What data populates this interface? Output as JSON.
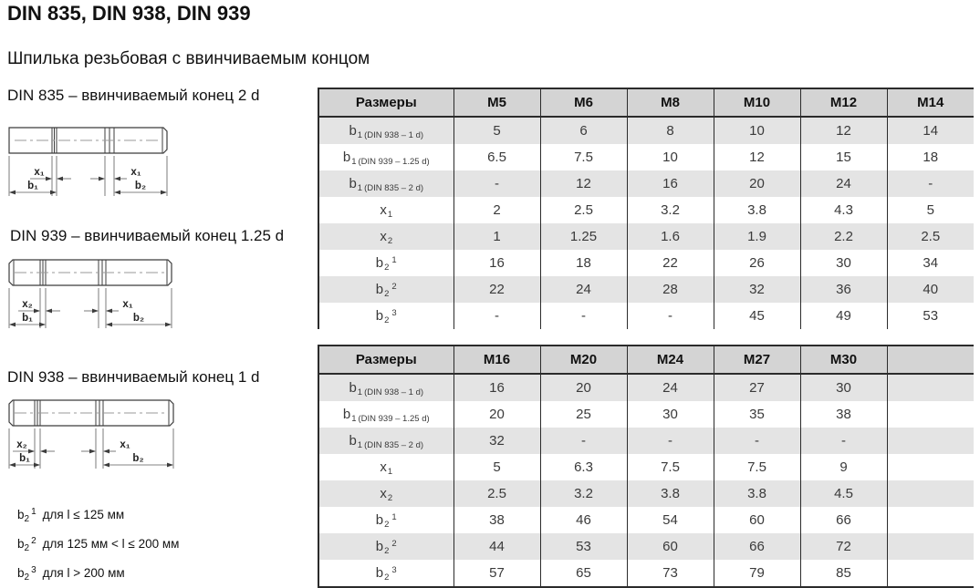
{
  "page": {
    "title": "DIN 835, DIN 938, DIN 939",
    "subtitle": "Шпилька резьбовая с ввинчиваемым концом"
  },
  "colors": {
    "header_bg": "#d4d4d4",
    "stripe_bg": "#e4e4e4",
    "border": "#2b2b2b"
  },
  "drawings": [
    {
      "caption": "DIN 835 – ввинчиваемый конец 2 d",
      "dim_left": "x₁",
      "dim_right": "x₁",
      "dim_b1": "b₁",
      "dim_b2": "b₂"
    },
    {
      "caption": "DIN 939 – ввинчиваемый конец 1.25 d",
      "dim_left": "x₂",
      "dim_right": "x₁",
      "dim_b1": "b₁",
      "dim_b2": "b₂"
    },
    {
      "caption": "DIN 938 – ввинчиваемый конец 1 d",
      "dim_left": "x₂",
      "dim_right": "x₁",
      "dim_b1": "b₁",
      "dim_b2": "b₂"
    }
  ],
  "footnotes": [
    {
      "base": "b",
      "sub": "2",
      "sup": "1",
      "text": "для l ≤ 125 мм"
    },
    {
      "base": "b",
      "sub": "2",
      "sup": "2",
      "text": "для 125 мм < l ≤ 200 мм"
    },
    {
      "base": "b",
      "sub": "2",
      "sup": "3",
      "text": "для l > 200 мм"
    }
  ],
  "tables": [
    {
      "header": [
        "Размеры",
        "M5",
        "M6",
        "M8",
        "M10",
        "M12",
        "M14"
      ],
      "rows": [
        {
          "label": {
            "main": "b",
            "sub": "1",
            "sup": "",
            "note": "(DIN 938 – 1 d)"
          },
          "values": [
            "5",
            "6",
            "8",
            "10",
            "12",
            "14"
          ]
        },
        {
          "label": {
            "main": "b",
            "sub": "1",
            "sup": "",
            "note": "(DIN 939 – 1.25 d)"
          },
          "values": [
            "6.5",
            "7.5",
            "10",
            "12",
            "15",
            "18"
          ]
        },
        {
          "label": {
            "main": "b",
            "sub": "1",
            "sup": "",
            "note": "(DIN 835 – 2 d)"
          },
          "values": [
            "-",
            "12",
            "16",
            "20",
            "24",
            "-"
          ]
        },
        {
          "label": {
            "main": "x",
            "sub": "1",
            "sup": "",
            "note": ""
          },
          "values": [
            "2",
            "2.5",
            "3.2",
            "3.8",
            "4.3",
            "5"
          ]
        },
        {
          "label": {
            "main": "x",
            "sub": "2",
            "sup": "",
            "note": ""
          },
          "values": [
            "1",
            "1.25",
            "1.6",
            "1.9",
            "2.2",
            "2.5"
          ]
        },
        {
          "label": {
            "main": "b",
            "sub": "2",
            "sup": "1",
            "note": ""
          },
          "values": [
            "16",
            "18",
            "22",
            "26",
            "30",
            "34"
          ]
        },
        {
          "label": {
            "main": "b",
            "sub": "2",
            "sup": "2",
            "note": ""
          },
          "values": [
            "22",
            "24",
            "28",
            "32",
            "36",
            "40"
          ]
        },
        {
          "label": {
            "main": "b",
            "sub": "2",
            "sup": "3",
            "note": ""
          },
          "values": [
            "-",
            "-",
            "-",
            "45",
            "49",
            "53"
          ]
        }
      ]
    },
    {
      "header": [
        "Размеры",
        "M16",
        "M20",
        "M24",
        "M27",
        "M30",
        ""
      ],
      "rows": [
        {
          "label": {
            "main": "b",
            "sub": "1",
            "sup": "",
            "note": "(DIN 938 – 1 d)"
          },
          "values": [
            "16",
            "20",
            "24",
            "27",
            "30",
            ""
          ]
        },
        {
          "label": {
            "main": "b",
            "sub": "1",
            "sup": "",
            "note": "(DIN 939 – 1.25 d)"
          },
          "values": [
            "20",
            "25",
            "30",
            "35",
            "38",
            ""
          ]
        },
        {
          "label": {
            "main": "b",
            "sub": "1",
            "sup": "",
            "note": "(DIN 835 – 2 d)"
          },
          "values": [
            "32",
            "-",
            "-",
            "-",
            "-",
            ""
          ]
        },
        {
          "label": {
            "main": "x",
            "sub": "1",
            "sup": "",
            "note": ""
          },
          "values": [
            "5",
            "6.3",
            "7.5",
            "7.5",
            "9",
            ""
          ]
        },
        {
          "label": {
            "main": "x",
            "sub": "2",
            "sup": "",
            "note": ""
          },
          "values": [
            "2.5",
            "3.2",
            "3.8",
            "3.8",
            "4.5",
            ""
          ]
        },
        {
          "label": {
            "main": "b",
            "sub": "2",
            "sup": "1",
            "note": ""
          },
          "values": [
            "38",
            "46",
            "54",
            "60",
            "66",
            ""
          ]
        },
        {
          "label": {
            "main": "b",
            "sub": "2",
            "sup": "2",
            "note": ""
          },
          "values": [
            "44",
            "53",
            "60",
            "66",
            "72",
            ""
          ]
        },
        {
          "label": {
            "main": "b",
            "sub": "2",
            "sup": "3",
            "note": ""
          },
          "values": [
            "57",
            "65",
            "73",
            "79",
            "85",
            ""
          ]
        }
      ]
    }
  ]
}
